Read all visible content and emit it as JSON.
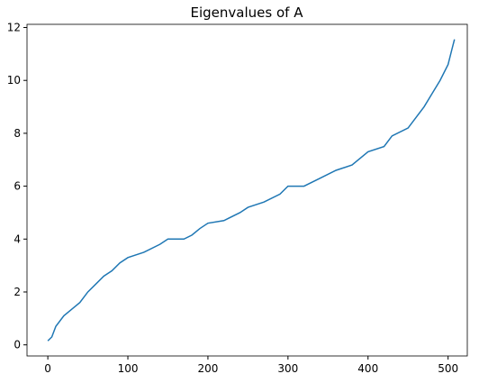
{
  "chart_data": {
    "type": "line",
    "title": "Eigenvalues of A",
    "x": [
      0,
      5,
      10,
      20,
      30,
      40,
      50,
      60,
      70,
      80,
      90,
      100,
      120,
      140,
      150,
      170,
      180,
      190,
      200,
      220,
      240,
      250,
      270,
      290,
      300,
      320,
      340,
      360,
      380,
      400,
      420,
      430,
      450,
      460,
      470,
      480,
      490,
      500,
      505,
      508
    ],
    "series": [
      {
        "name": "eigenvalues",
        "color": "#1f77b4",
        "values": [
          0.15,
          0.3,
          0.7,
          1.1,
          1.35,
          1.6,
          2.0,
          2.3,
          2.6,
          2.8,
          3.1,
          3.3,
          3.5,
          3.8,
          4.0,
          4.0,
          4.15,
          4.4,
          4.6,
          4.7,
          5.0,
          5.2,
          5.4,
          5.7,
          6.0,
          6.0,
          6.3,
          6.6,
          6.8,
          7.3,
          7.5,
          7.9,
          8.2,
          8.6,
          9.0,
          9.5,
          10.0,
          10.6,
          11.2,
          11.55
        ]
      }
    ],
    "xlim": [
      -26,
      524
    ],
    "xticks": [
      0,
      100,
      200,
      300,
      400,
      500
    ],
    "ylim": [
      -0.42,
      12.12
    ],
    "yticks": [
      0,
      2,
      4,
      6,
      8,
      10,
      12
    ]
  }
}
